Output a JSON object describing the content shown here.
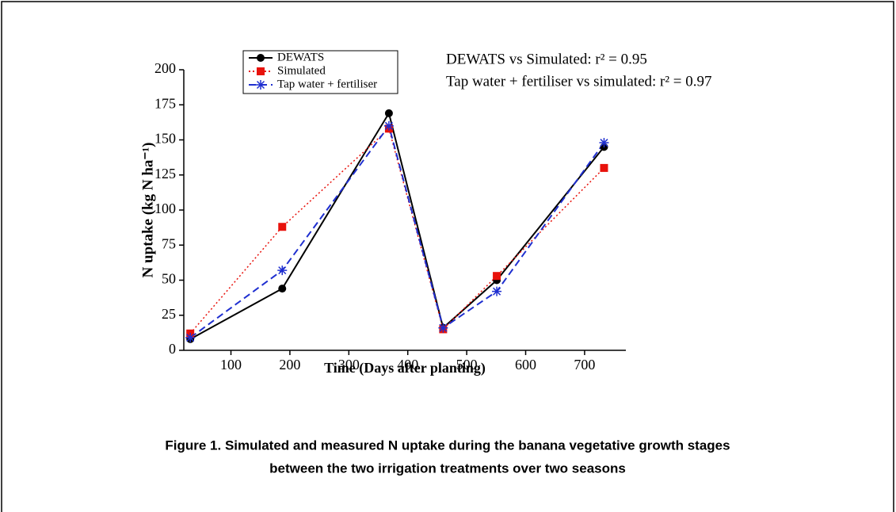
{
  "chart_data": {
    "type": "line",
    "y_label": "N uptake (kg  N ha⁻¹)",
    "x_label": "Time (Days after planting)",
    "annotations": [
      "DEWATS vs Simulated: r² = 0.95",
      "Tap water + fertiliser vs simulated: r² = 0.97"
    ],
    "x": [
      31,
      187,
      368,
      460,
      551,
      733
    ],
    "series": [
      {
        "name": "DEWATS",
        "color": "#000000",
        "values": [
          8,
          44,
          169,
          16,
          50,
          145
        ]
      },
      {
        "name": "Simulated",
        "color": "#e8120c",
        "values": [
          12,
          88,
          158,
          15,
          53,
          130
        ]
      },
      {
        "name": "Tap water + fertiliser",
        "color": "#1f2fd0",
        "values": [
          9,
          57,
          160,
          16,
          42,
          148
        ]
      }
    ],
    "xlim": [
      20,
      770
    ],
    "ylim": [
      0,
      200
    ],
    "xticks": [
      100,
      200,
      300,
      400,
      500,
      600,
      700
    ],
    "yticks": [
      0,
      25,
      50,
      75,
      100,
      125,
      150,
      175,
      200
    ],
    "legend": "upper left"
  },
  "caption": [
    "Figure 1. Simulated and measured N uptake during the banana vegetative growth stages",
    "between the two irrigation treatments over two seasons"
  ]
}
